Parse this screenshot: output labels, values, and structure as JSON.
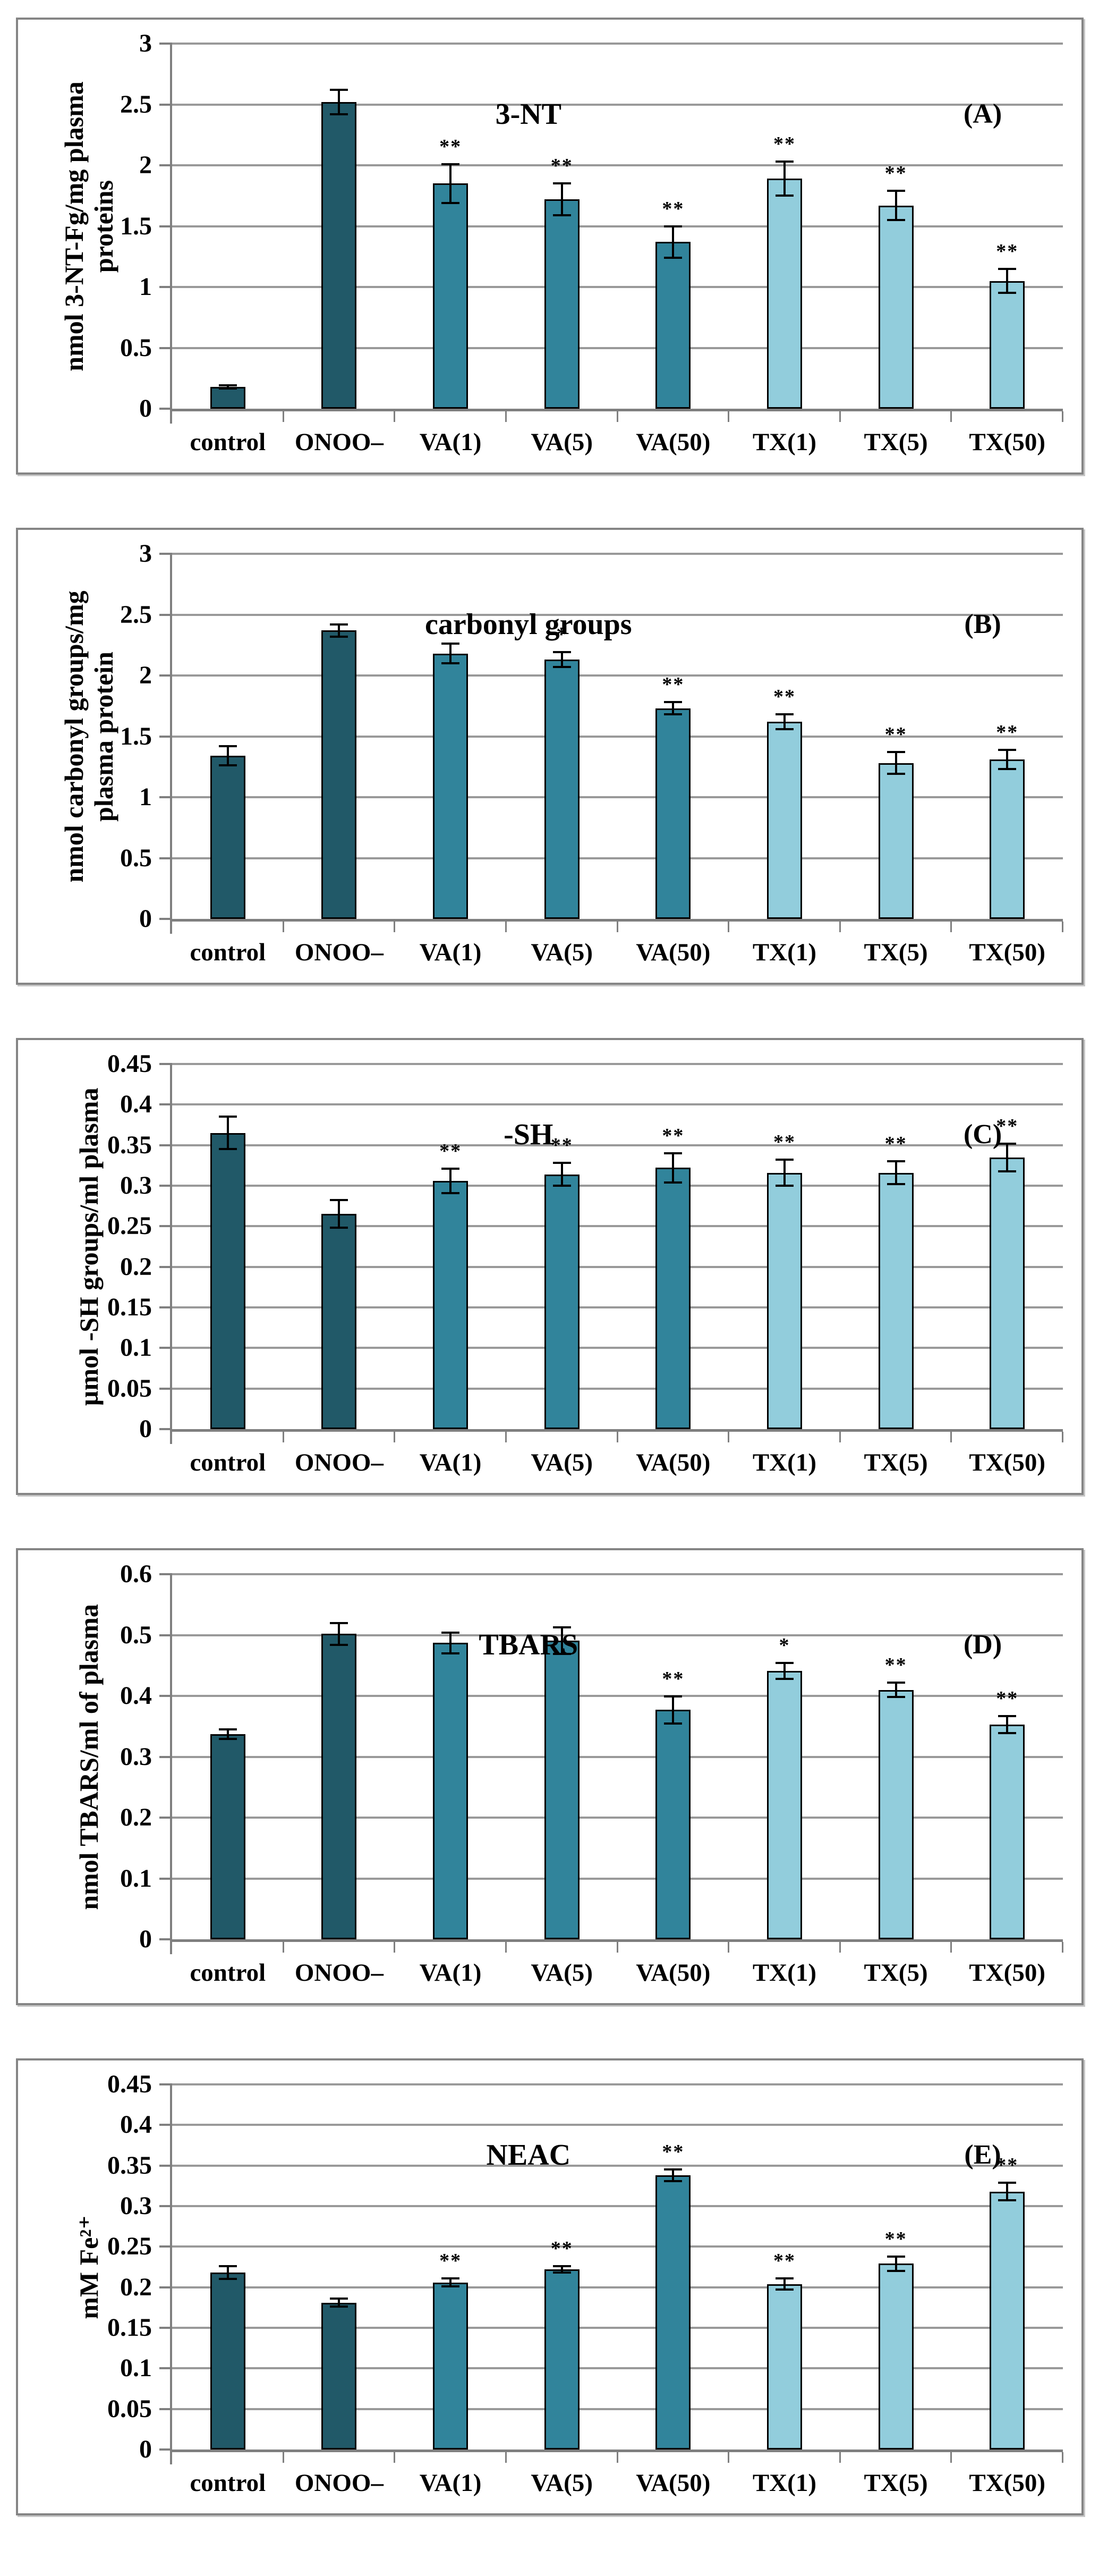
{
  "figure": {
    "description_labels": [
      "(A)",
      "(B)",
      "(C)",
      "(D)",
      "(E)"
    ]
  },
  "colors": {
    "dark": "#215968",
    "mid": "#31849b",
    "light": "#92cddc",
    "grid": "#999999",
    "axis": "#7f7f7f",
    "bar_border": "#000000",
    "panel_border": "#858585"
  },
  "chart_data": [
    {
      "type": "bar",
      "panel_letter": "(A)",
      "title": "3-NT",
      "ylabel": "nmol 3-NT-Fg/mg plasma\nproteins",
      "ylim": [
        0,
        3
      ],
      "ytick_labels": [
        "0",
        "0.5",
        "1",
        "1.5",
        "2",
        "2.5",
        "3"
      ],
      "ytick_values": [
        0,
        0.5,
        1,
        1.5,
        2,
        2.5,
        3
      ],
      "grid": true,
      "categories": [
        "control",
        "ONOO–",
        "VA(1)",
        "VA(5)",
        "VA(50)",
        "TX(1)",
        "TX(5)",
        "TX(50)"
      ],
      "values": [
        0.18,
        2.52,
        1.85,
        1.72,
        1.37,
        1.89,
        1.67,
        1.05
      ],
      "errors": [
        0.012,
        0.1,
        0.16,
        0.13,
        0.13,
        0.14,
        0.12,
        0.1
      ],
      "sig": [
        "",
        "",
        "**",
        "**",
        "**",
        "**",
        "**",
        "**"
      ],
      "bar_shades": [
        "dark",
        "dark",
        "mid",
        "mid",
        "mid",
        "light",
        "light",
        "light"
      ]
    },
    {
      "type": "bar",
      "panel_letter": "(B)",
      "title": "carbonyl groups",
      "ylabel": "nmol carbonyl groups/mg\nplasma protein",
      "ylim": [
        0,
        3
      ],
      "ytick_labels": [
        "0",
        "0.5",
        "1",
        "1.5",
        "2",
        "2.5",
        "3"
      ],
      "ytick_values": [
        0,
        0.5,
        1,
        1.5,
        2,
        2.5,
        3
      ],
      "grid": true,
      "categories": [
        "control",
        "ONOO–",
        "VA(1)",
        "VA(5)",
        "VA(50)",
        "TX(1)",
        "TX(5)",
        "TX(50)"
      ],
      "values": [
        1.34,
        2.37,
        2.18,
        2.13,
        1.73,
        1.62,
        1.28,
        1.31
      ],
      "errors": [
        0.08,
        0.05,
        0.08,
        0.06,
        0.05,
        0.06,
        0.09,
        0.08
      ],
      "sig": [
        "",
        "",
        "",
        "*",
        "**",
        "**",
        "**",
        "**"
      ],
      "bar_shades": [
        "dark",
        "dark",
        "mid",
        "mid",
        "mid",
        "light",
        "light",
        "light"
      ]
    },
    {
      "type": "bar",
      "panel_letter": "(C)",
      "title": "-SH",
      "ylabel": "µmol -SH groups/ml plasma",
      "ylim": [
        0,
        0.45
      ],
      "ytick_labels": [
        "0",
        "0.05",
        "0.1",
        "0.15",
        "0.2",
        "0.25",
        "0.3",
        "0.35",
        "0.4",
        "0.45"
      ],
      "ytick_values": [
        0,
        0.05,
        0.1,
        0.15,
        0.2,
        0.25,
        0.3,
        0.35,
        0.4,
        0.45
      ],
      "grid": true,
      "categories": [
        "control",
        "ONOO–",
        "VA(1)",
        "VA(5)",
        "VA(50)",
        "TX(1)",
        "TX(5)",
        "TX(50)"
      ],
      "values": [
        0.365,
        0.265,
        0.306,
        0.314,
        0.322,
        0.316,
        0.316,
        0.335
      ],
      "errors": [
        0.02,
        0.017,
        0.015,
        0.014,
        0.018,
        0.016,
        0.014,
        0.017
      ],
      "sig": [
        "",
        "",
        "**",
        "**",
        "**",
        "**",
        "**",
        "**"
      ],
      "bar_shades": [
        "dark",
        "dark",
        "mid",
        "mid",
        "mid",
        "light",
        "light",
        "light"
      ]
    },
    {
      "type": "bar",
      "panel_letter": "(D)",
      "title": "TBARS",
      "ylabel": "nmol TBARS/ml of plasma",
      "ylim": [
        0,
        0.6
      ],
      "ytick_labels": [
        "0",
        "0.1",
        "0.2",
        "0.3",
        "0.4",
        "0.5",
        "0.6"
      ],
      "ytick_values": [
        0,
        0.1,
        0.2,
        0.3,
        0.4,
        0.5,
        0.6
      ],
      "grid": true,
      "categories": [
        "control",
        "ONOO–",
        "VA(1)",
        "VA(5)",
        "VA(50)",
        "TX(1)",
        "TX(5)",
        "TX(50)"
      ],
      "values": [
        0.337,
        0.502,
        0.487,
        0.491,
        0.377,
        0.441,
        0.41,
        0.353
      ],
      "errors": [
        0.008,
        0.018,
        0.017,
        0.022,
        0.022,
        0.013,
        0.012,
        0.014
      ],
      "sig": [
        "",
        "",
        "",
        "",
        "**",
        "*",
        "**",
        "**"
      ],
      "bar_shades": [
        "dark",
        "dark",
        "mid",
        "mid",
        "mid",
        "light",
        "light",
        "light"
      ]
    },
    {
      "type": "bar",
      "panel_letter": "(E)",
      "title": "NEAC",
      "ylabel": "mM Fe²⁺",
      "ylim": [
        0,
        0.45
      ],
      "ytick_labels": [
        "0",
        "0.05",
        "0.1",
        "0.15",
        "0.2",
        "0.25",
        "0.3",
        "0.35",
        "0.4",
        "0.45"
      ],
      "ytick_values": [
        0,
        0.05,
        0.1,
        0.15,
        0.2,
        0.25,
        0.3,
        0.35,
        0.4,
        0.45
      ],
      "grid": true,
      "categories": [
        "control",
        "ONOO–",
        "VA(1)",
        "VA(5)",
        "VA(50)",
        "TX(1)",
        "TX(5)",
        "TX(50)"
      ],
      "values": [
        0.218,
        0.181,
        0.206,
        0.222,
        0.338,
        0.204,
        0.229,
        0.318
      ],
      "errors": [
        0.008,
        0.005,
        0.005,
        0.004,
        0.007,
        0.007,
        0.009,
        0.011
      ],
      "sig": [
        "",
        "",
        "**",
        "**",
        "**",
        "**",
        "**",
        "**"
      ],
      "bar_shades": [
        "dark",
        "dark",
        "mid",
        "mid",
        "mid",
        "light",
        "light",
        "light"
      ]
    }
  ]
}
